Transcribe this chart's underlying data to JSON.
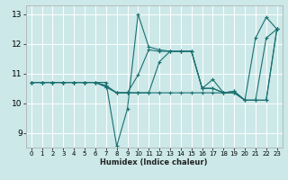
{
  "xlabel": "Humidex (Indice chaleur)",
  "ylabel": "",
  "background_color": "#cce8e8",
  "grid_color": "#b0d0d0",
  "line_color": "#1a7070",
  "xlim": [
    -0.5,
    23.5
  ],
  "ylim": [
    8.5,
    13.3
  ],
  "xticks": [
    0,
    1,
    2,
    3,
    4,
    5,
    6,
    7,
    8,
    9,
    10,
    11,
    12,
    13,
    14,
    15,
    16,
    17,
    18,
    19,
    20,
    21,
    22,
    23
  ],
  "yticks": [
    9,
    10,
    11,
    12,
    13
  ],
  "series": [
    {
      "x": [
        0,
        1,
        2,
        3,
        4,
        5,
        6,
        7,
        8,
        9,
        10,
        11,
        12,
        13,
        14,
        15,
        16,
        17,
        18,
        19,
        20,
        21,
        22,
        23
      ],
      "y": [
        10.7,
        10.7,
        10.7,
        10.7,
        10.7,
        10.7,
        10.7,
        10.7,
        8.55,
        9.8,
        13.0,
        11.9,
        11.8,
        11.75,
        11.75,
        11.75,
        10.5,
        10.8,
        10.35,
        10.4,
        10.1,
        12.2,
        12.9,
        12.5
      ]
    },
    {
      "x": [
        0,
        1,
        2,
        3,
        4,
        5,
        6,
        7,
        8,
        9,
        10,
        11,
        12,
        13,
        14,
        15,
        16,
        17,
        18,
        19,
        20,
        21,
        22,
        23
      ],
      "y": [
        10.7,
        10.7,
        10.7,
        10.7,
        10.7,
        10.7,
        10.7,
        10.6,
        10.35,
        10.35,
        10.95,
        11.8,
        11.75,
        11.75,
        11.75,
        11.75,
        10.5,
        10.5,
        10.35,
        10.4,
        10.1,
        10.1,
        12.2,
        12.5
      ]
    },
    {
      "x": [
        0,
        1,
        2,
        3,
        4,
        5,
        6,
        7,
        8,
        9,
        10,
        11,
        12,
        13,
        14,
        15,
        16,
        17,
        18,
        19,
        20,
        21,
        22,
        23
      ],
      "y": [
        10.7,
        10.7,
        10.7,
        10.7,
        10.7,
        10.7,
        10.7,
        10.55,
        10.35,
        10.35,
        10.35,
        10.35,
        11.4,
        11.75,
        11.75,
        11.75,
        10.5,
        10.5,
        10.35,
        10.35,
        10.1,
        10.1,
        10.1,
        12.5
      ]
    },
    {
      "x": [
        0,
        1,
        2,
        3,
        4,
        5,
        6,
        7,
        8,
        9,
        10,
        11,
        12,
        13,
        14,
        15,
        16,
        17,
        18,
        19,
        20,
        21,
        22,
        23
      ],
      "y": [
        10.7,
        10.7,
        10.7,
        10.7,
        10.7,
        10.7,
        10.7,
        10.55,
        10.35,
        10.35,
        10.35,
        10.35,
        10.35,
        10.35,
        10.35,
        10.35,
        10.35,
        10.35,
        10.35,
        10.35,
        10.1,
        10.1,
        10.1,
        12.5
      ]
    }
  ]
}
